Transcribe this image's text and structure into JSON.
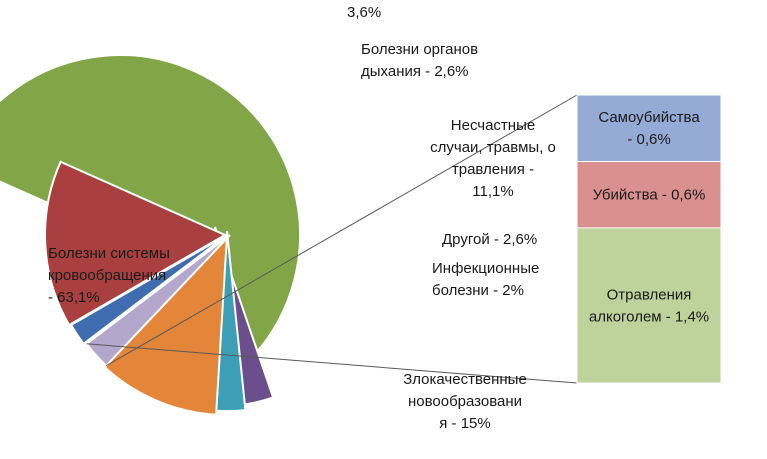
{
  "chart_data": {
    "type": "bar-of-pie",
    "title": "",
    "pie": {
      "slices": [
        {
          "key": "circulatory",
          "value": 63.1,
          "color": "#82a548",
          "label_lines": [
            "Болезни системы",
            "кровообращения",
            "- 63,1%"
          ]
        },
        {
          "key": "unlabeled",
          "value": 3.6,
          "color": "#6a4f8c",
          "label_lines": [
            "3,6%"
          ]
        },
        {
          "key": "respiratory",
          "value": 2.6,
          "color": "#3d9fb5",
          "label_lines": [
            "Болезни органов",
            "дыхания - 2,6%"
          ]
        },
        {
          "key": "accidents",
          "value": 11.1,
          "color": "#e3863a",
          "label_lines": [
            "Несчастные",
            "случаи, травмы, о",
            "травления  -",
            "11,1%"
          ]
        },
        {
          "key": "other",
          "value": 2.6,
          "color": "#b3a7cb",
          "label_lines": [
            "Другой - 2,6%"
          ]
        },
        {
          "key": "infectious",
          "value": 2.0,
          "color": "#3f6db0",
          "label_lines": [
            "Инфекционные",
            "болезни - 2%"
          ]
        },
        {
          "key": "neoplasms",
          "value": 15.0,
          "color": "#a9403f",
          "label_lines": [
            "Злокачественные",
            "новообразовани",
            "я - 15%"
          ]
        }
      ],
      "exploded_to_bar": "other"
    },
    "bar": {
      "total": 2.6,
      "segments": [
        {
          "key": "suicide",
          "value": 0.6,
          "color": "#95abd6",
          "label_lines": [
            "Самоубийства",
            "- 0,6%"
          ]
        },
        {
          "key": "murder",
          "value": 0.6,
          "color": "#d9908f",
          "label_lines": [
            "Убийства - 0,6%"
          ]
        },
        {
          "key": "alcohol",
          "value": 1.4,
          "color": "#bed29b",
          "label_lines": [
            "Отравления",
            "алкоголем - 1,4%"
          ]
        }
      ]
    }
  }
}
